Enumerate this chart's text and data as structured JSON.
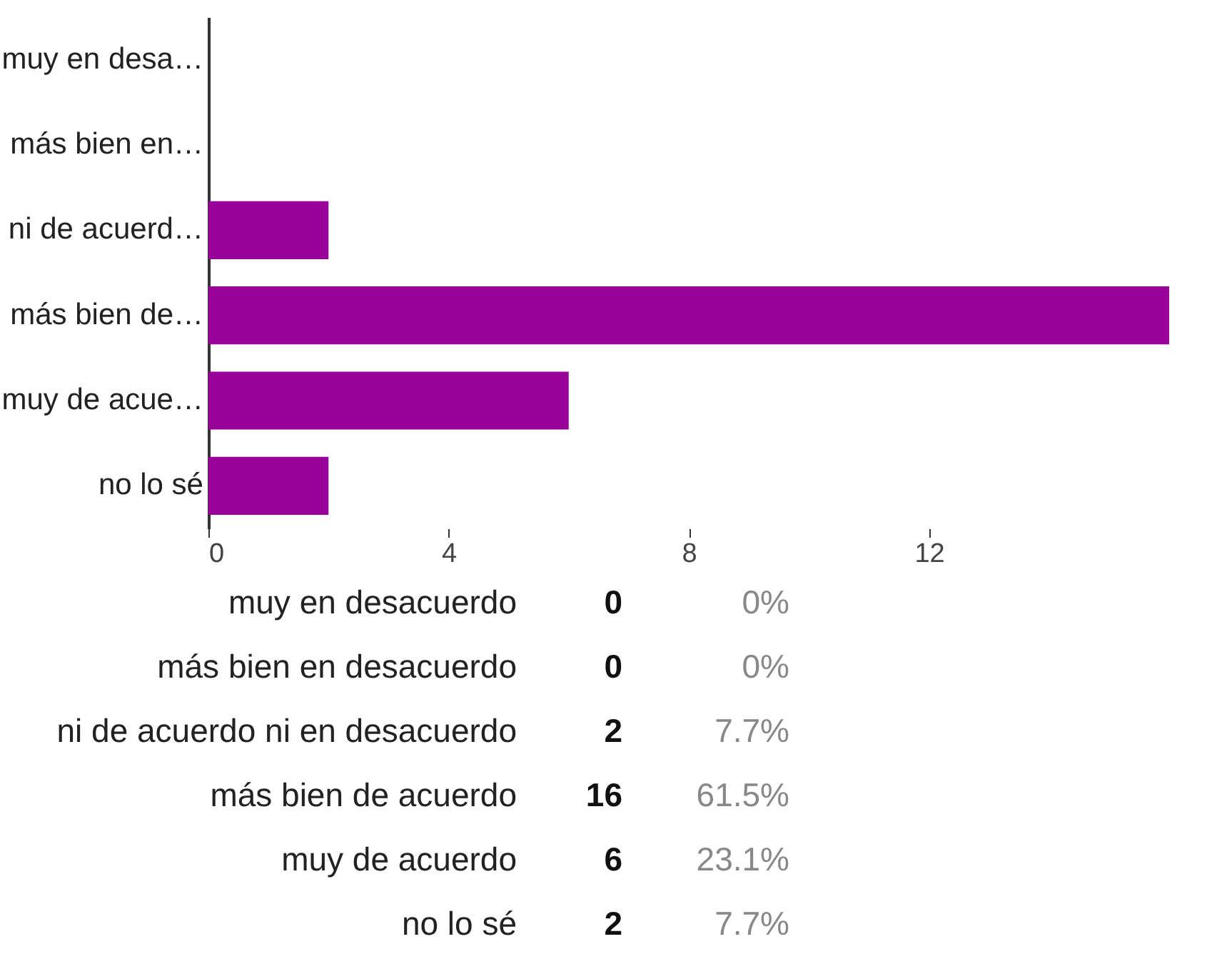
{
  "chart_data": [
    {
      "type": "bar",
      "orientation": "horizontal",
      "categories": [
        "muy en desa…",
        "más bien en…",
        "ni de acuerd…",
        "más bien de…",
        "muy de acue…",
        "no lo sé"
      ],
      "values": [
        0,
        0,
        2,
        16,
        6,
        2
      ],
      "color": "#990099",
      "xlim": [
        0,
        16
      ],
      "xticks": [
        0,
        4,
        8,
        12
      ],
      "grid": false
    },
    {
      "type": "other",
      "categories": [
        "muy en desacuerdo",
        "más bien en desacuerdo",
        "ni de acuerdo ni en desacuerdo",
        "más bien de acuerdo",
        "muy de acuerdo",
        "no lo sé"
      ],
      "data_labels": true,
      "series": [
        {
          "values": [
            0,
            0,
            2,
            16,
            6,
            2
          ]
        },
        {
          "values": [
            0,
            0,
            7.7,
            61.5,
            23.1,
            7.7
          ],
          "value_labels": [
            "0%",
            "0%",
            "7.7%",
            "61.5%",
            "23.1%",
            "7.7%"
          ]
        }
      ]
    }
  ]
}
